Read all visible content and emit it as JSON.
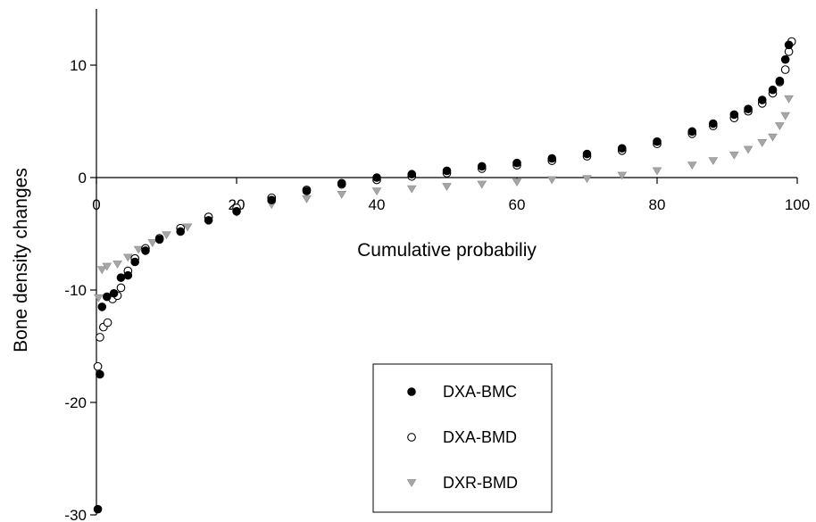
{
  "chart_data": {
    "type": "scatter",
    "title": "",
    "xlabel": "Cumulative probabiliy",
    "ylabel": "Bone density changes",
    "xlim": [
      0,
      100
    ],
    "ylim": [
      -30,
      15
    ],
    "x_ticks": [
      "0",
      "20",
      "40",
      "60",
      "80",
      "100"
    ],
    "y_ticks": [
      "10",
      "0",
      "-10",
      "-20",
      "-30"
    ],
    "grid": false,
    "legend_position": "bottom-center, boxed",
    "series": [
      {
        "name": "DXA-BMC",
        "marker": "filled-circle",
        "color": "#000000",
        "points": [
          [
            0.2,
            -29.5
          ],
          [
            0.5,
            -17.5
          ],
          [
            0.8,
            -11.5
          ],
          [
            1.5,
            -10.6
          ],
          [
            2.5,
            -10.3
          ],
          [
            3.5,
            -8.9
          ],
          [
            4.5,
            -8.7
          ],
          [
            5.5,
            -7.5
          ],
          [
            7,
            -6.5
          ],
          [
            9,
            -5.5
          ],
          [
            12,
            -4.8
          ],
          [
            16,
            -3.8
          ],
          [
            20,
            -3.0
          ],
          [
            25,
            -2.0
          ],
          [
            30,
            -1.2
          ],
          [
            35,
            -0.5
          ],
          [
            40,
            0.0
          ],
          [
            45,
            0.3
          ],
          [
            50,
            0.6
          ],
          [
            55,
            1.0
          ],
          [
            60,
            1.3
          ],
          [
            65,
            1.7
          ],
          [
            70,
            2.1
          ],
          [
            75,
            2.6
          ],
          [
            80,
            3.2
          ],
          [
            85,
            4.1
          ],
          [
            88,
            4.8
          ],
          [
            91,
            5.6
          ],
          [
            93,
            6.1
          ],
          [
            95,
            6.9
          ],
          [
            96.5,
            7.8
          ],
          [
            97.5,
            8.6
          ],
          [
            98.3,
            10.5
          ],
          [
            98.8,
            11.8
          ]
        ]
      },
      {
        "name": "DXA-BMD",
        "marker": "open-circle",
        "color": "#000000",
        "points": [
          [
            0.2,
            -16.8
          ],
          [
            0.5,
            -14.2
          ],
          [
            1,
            -13.3
          ],
          [
            1.6,
            -12.9
          ],
          [
            2.3,
            -10.8
          ],
          [
            3,
            -10.5
          ],
          [
            3.5,
            -9.8
          ],
          [
            4.5,
            -8.3
          ],
          [
            5.5,
            -7.2
          ],
          [
            7,
            -6.3
          ],
          [
            9,
            -5.4
          ],
          [
            12,
            -4.5
          ],
          [
            16,
            -3.5
          ],
          [
            20,
            -2.7
          ],
          [
            25,
            -1.8
          ],
          [
            30,
            -1.1
          ],
          [
            35,
            -0.6
          ],
          [
            40,
            -0.2
          ],
          [
            45,
            0.1
          ],
          [
            50,
            0.4
          ],
          [
            55,
            0.8
          ],
          [
            60,
            1.1
          ],
          [
            65,
            1.5
          ],
          [
            70,
            1.9
          ],
          [
            75,
            2.4
          ],
          [
            80,
            3.0
          ],
          [
            85,
            3.9
          ],
          [
            88,
            4.6
          ],
          [
            91,
            5.3
          ],
          [
            93,
            5.9
          ],
          [
            95,
            6.6
          ],
          [
            96.5,
            7.5
          ],
          [
            97.5,
            8.5
          ],
          [
            98.3,
            9.6
          ],
          [
            98.8,
            11.2
          ],
          [
            99.2,
            12.1
          ]
        ]
      },
      {
        "name": "DXR-BMD",
        "marker": "triangle-down",
        "color": "#a6a6a6",
        "points": [
          [
            0.3,
            -10.7
          ],
          [
            0.8,
            -8.2
          ],
          [
            1.5,
            -7.9
          ],
          [
            3,
            -7.7
          ],
          [
            4.5,
            -7.1
          ],
          [
            6,
            -6.4
          ],
          [
            8,
            -5.8
          ],
          [
            10,
            -5.1
          ],
          [
            13,
            -4.4
          ],
          [
            16,
            -3.8
          ],
          [
            20,
            -3.1
          ],
          [
            25,
            -2.4
          ],
          [
            30,
            -1.9
          ],
          [
            35,
            -1.5
          ],
          [
            40,
            -1.2
          ],
          [
            45,
            -1.0
          ],
          [
            50,
            -0.8
          ],
          [
            55,
            -0.6
          ],
          [
            60,
            -0.4
          ],
          [
            65,
            -0.2
          ],
          [
            70,
            -0.1
          ],
          [
            75,
            0.2
          ],
          [
            80,
            0.6
          ],
          [
            85,
            1.1
          ],
          [
            88,
            1.5
          ],
          [
            91,
            2.0
          ],
          [
            93,
            2.5
          ],
          [
            95,
            3.1
          ],
          [
            96.5,
            3.6
          ],
          [
            97.5,
            4.6
          ],
          [
            98.3,
            5.5
          ],
          [
            98.8,
            7.0
          ]
        ]
      }
    ]
  }
}
